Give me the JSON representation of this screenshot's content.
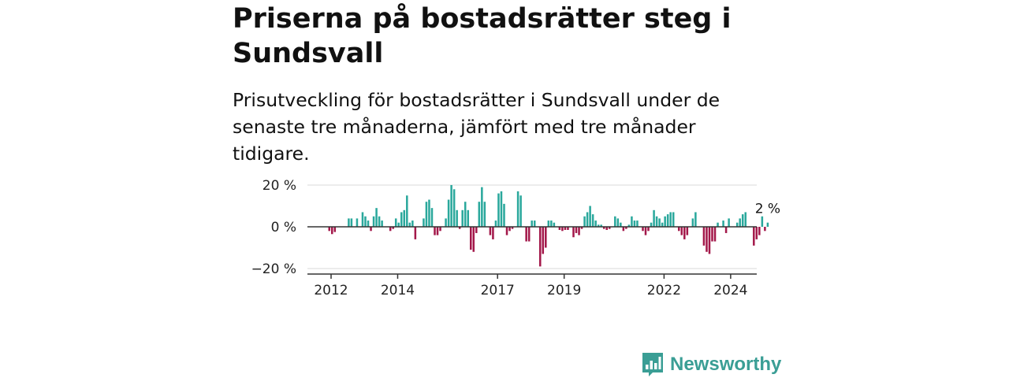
{
  "header": {
    "title": "Priserna på bostadsrätter steg i Sundsvall",
    "subtitle": "Prisutveckling för bostadsrätter i Sundsvall under de senaste tre månaderna, jämfört med tre månader tidigare."
  },
  "brand": {
    "name": "Newsworthy",
    "color": "#3a9e95",
    "icon": "bar-chart-speech-bubble-icon"
  },
  "chart_data": {
    "type": "bar",
    "title": "",
    "xlabel": "",
    "ylabel": "",
    "ylim": [
      -22,
      22
    ],
    "y_ticks": [
      {
        "value": 20,
        "label": "20 %"
      },
      {
        "value": 0,
        "label": "0 %"
      },
      {
        "value": -20,
        "label": "−20 %"
      }
    ],
    "x_ticks": [
      {
        "year": 2012,
        "label": "2012"
      },
      {
        "year": 2014,
        "label": "2014"
      },
      {
        "year": 2017,
        "label": "2017"
      },
      {
        "year": 2019,
        "label": "2019"
      },
      {
        "year": 2022,
        "label": "2022"
      },
      {
        "year": 2024,
        "label": "2024"
      }
    ],
    "grid": true,
    "colors": {
      "positive": "#2aa89c",
      "negative": "#a3184a",
      "grid": "#d9d9d9",
      "zero": "#333333",
      "axis": "#333333"
    },
    "series": [
      {
        "start": "2011-12",
        "frequency": "monthly",
        "values": [
          -2,
          -3.5,
          -2.5,
          0,
          0,
          0,
          0,
          4,
          4,
          0,
          4,
          0,
          7,
          5,
          3,
          -2,
          5,
          9,
          5,
          3,
          0,
          0,
          -2,
          -1,
          4,
          2,
          7,
          8,
          15,
          2,
          3,
          -6,
          0,
          0,
          4,
          12,
          13,
          9,
          -4,
          -4,
          -2,
          0,
          4,
          13,
          20,
          18,
          8,
          -1,
          8,
          12,
          8,
          -11,
          -12,
          -3,
          12,
          19,
          12,
          0,
          -4,
          -6,
          3,
          16,
          17,
          11,
          -4,
          -2,
          -1,
          0,
          17,
          15,
          0,
          -7,
          -7,
          3,
          3,
          0,
          -19,
          -13,
          -10,
          3,
          3,
          2,
          0,
          -1.5,
          -2,
          -1.5,
          -1.5,
          0,
          -5,
          -3,
          -4,
          -1,
          5,
          7,
          10,
          6,
          3,
          1,
          1,
          -1,
          -1.5,
          -1,
          0,
          5,
          4,
          2,
          -2,
          -1,
          1,
          5,
          3,
          3,
          0,
          -2,
          -4,
          -2,
          2,
          8,
          5,
          4,
          2,
          5,
          6,
          7,
          7,
          0,
          -2,
          -4,
          -6,
          -4,
          0,
          4,
          7,
          0,
          0,
          -9,
          -12,
          -13,
          -7,
          -7,
          2,
          0,
          3,
          -3,
          4,
          0,
          0,
          2,
          4,
          6,
          7,
          0,
          0,
          -9,
          -6,
          -4,
          5,
          -2,
          2
        ]
      }
    ],
    "annotations": [
      {
        "text": "2 %",
        "target": "last"
      }
    ]
  }
}
